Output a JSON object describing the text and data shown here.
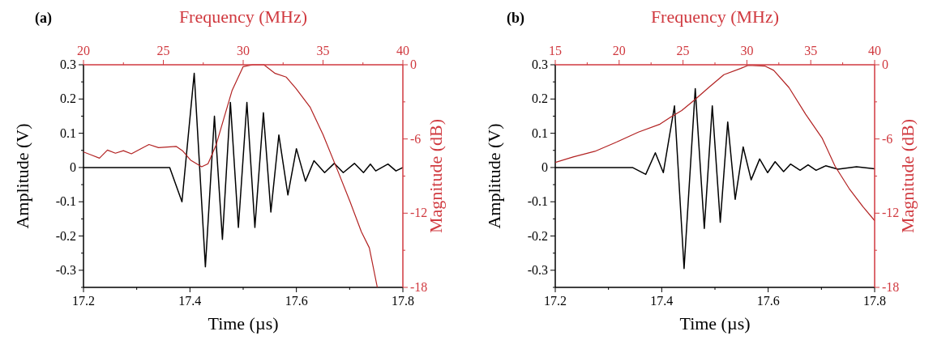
{
  "chart_data": [
    {
      "type": "line",
      "title": "(a)",
      "xlabel": "Time (µs)",
      "ylabel": "Amplitude (V)",
      "xlim": [
        17.2,
        17.8
      ],
      "xticks": [
        17.2,
        {
          "value": 17.3,
          "label": null
        },
        17.4,
        {
          "value": 17.5,
          "label": null
        },
        17.6,
        {
          "value": 17.7,
          "label": null
        },
        17.8
      ],
      "ylim": [
        -0.35,
        0.3
      ],
      "yticks": [
        {
          "value": -0.35,
          "label": null
        },
        -0.3,
        {
          "value": -0.25,
          "label": null
        },
        -0.2,
        {
          "value": -0.15,
          "label": null
        },
        -0.1,
        {
          "value": -0.05,
          "label": null
        },
        0.0,
        {
          "value": 0.05,
          "label": null
        },
        0.1,
        {
          "value": 0.15,
          "label": null
        },
        0.2,
        {
          "value": 0.25,
          "label": null
        },
        0.3
      ],
      "grid": false,
      "series": [
        {
          "color": "#000000",
          "x": [
            17.2,
            17.362,
            17.385,
            17.408,
            17.429,
            17.446,
            17.461,
            17.476,
            17.491,
            17.507,
            17.522,
            17.538,
            17.552,
            17.567,
            17.584,
            17.6,
            17.617,
            17.633,
            17.653,
            17.671,
            17.688,
            17.709,
            17.726,
            17.739,
            17.749,
            17.772,
            17.787,
            17.8
          ],
          "values": [
            0,
            0,
            -0.1,
            0.275,
            -0.29,
            0.15,
            -0.21,
            0.19,
            -0.175,
            0.19,
            -0.175,
            0.16,
            -0.13,
            0.095,
            -0.08,
            0.055,
            -0.04,
            0.02,
            -0.015,
            0.012,
            -0.015,
            0.012,
            -0.015,
            0.01,
            -0.01,
            0.01,
            -0.01,
            0
          ]
        }
      ]
    },
    {
      "type": "line",
      "xlabel": "Frequency (MHz)",
      "ylabel": "Magnitude (dB)",
      "xlim": [
        20,
        40
      ],
      "xticks": [
        20,
        {
          "value": 22.5,
          "label": null
        },
        25,
        {
          "value": 27.5,
          "label": null
        },
        30,
        {
          "value": 32.5,
          "label": null
        },
        35,
        {
          "value": 37.5,
          "label": null
        },
        40
      ],
      "ylim": [
        -18,
        0
      ],
      "yticks": [
        -18,
        {
          "value": -15,
          "label": null
        },
        -12,
        {
          "value": -9,
          "label": null
        },
        -6,
        {
          "value": -3,
          "label": null
        },
        0
      ],
      "grid": false,
      "series": [
        {
          "color": "#b22222",
          "x": [
            20,
            20.5,
            21,
            21.5,
            22,
            22.5,
            23,
            23.5,
            24.1,
            24.7,
            25.8,
            26.2,
            26.7,
            27.4,
            27.8,
            28.3,
            28.8,
            29.3,
            30,
            30.6,
            31.3,
            32,
            32.7,
            33.3,
            34.2,
            35,
            35.9,
            36.7,
            37.4,
            37.9,
            38.4
          ],
          "values": [
            -7.05,
            -7.3,
            -7.55,
            -6.9,
            -7.15,
            -6.95,
            -7.2,
            -6.85,
            -6.45,
            -6.7,
            -6.6,
            -6.95,
            -7.7,
            -8.25,
            -8,
            -6.5,
            -4.3,
            -2.1,
            -0.15,
            0,
            0,
            -0.7,
            -1,
            -1.9,
            -3.45,
            -5.65,
            -8.5,
            -11.1,
            -13.5,
            -14.8,
            -18
          ]
        }
      ]
    },
    {
      "type": "line",
      "title": "(b)",
      "xlabel": "Time (µs)",
      "ylabel": "Amplitude (V)",
      "xlim": [
        17.2,
        17.8
      ],
      "xticks": [
        17.2,
        {
          "value": 17.3,
          "label": null
        },
        17.4,
        {
          "value": 17.5,
          "label": null
        },
        17.6,
        {
          "value": 17.7,
          "label": null
        },
        17.8
      ],
      "ylim": [
        -0.35,
        0.3
      ],
      "yticks": [
        {
          "value": -0.35,
          "label": null
        },
        -0.3,
        {
          "value": -0.25,
          "label": null
        },
        -0.2,
        {
          "value": -0.15,
          "label": null
        },
        -0.1,
        {
          "value": -0.05,
          "label": null
        },
        0.0,
        {
          "value": 0.05,
          "label": null
        },
        0.1,
        {
          "value": 0.15,
          "label": null
        },
        0.2,
        {
          "value": 0.25,
          "label": null
        },
        0.3
      ],
      "grid": false,
      "series": [
        {
          "color": "#000000",
          "x": [
            17.2,
            17.345,
            17.37,
            17.388,
            17.403,
            17.424,
            17.442,
            17.463,
            17.48,
            17.495,
            17.51,
            17.524,
            17.538,
            17.553,
            17.568,
            17.584,
            17.599,
            17.613,
            17.629,
            17.642,
            17.66,
            17.675,
            17.69,
            17.708,
            17.731,
            17.766,
            17.8
          ],
          "values": [
            0,
            0,
            -0.02,
            0.043,
            -0.015,
            0.18,
            -0.295,
            0.23,
            -0.178,
            0.18,
            -0.16,
            0.133,
            -0.093,
            0.06,
            -0.036,
            0.025,
            -0.015,
            0.017,
            -0.012,
            0.01,
            -0.008,
            0.008,
            -0.008,
            0.005,
            -0.005,
            0.002,
            -0.004
          ]
        }
      ]
    },
    {
      "type": "line",
      "xlabel": "Frequency (MHz)",
      "ylabel": "Magnitude (dB)",
      "xlim": [
        15,
        40
      ],
      "xticks": [
        15,
        {
          "value": 17.5,
          "label": null
        },
        20,
        {
          "value": 22.5,
          "label": null
        },
        25,
        {
          "value": 27.5,
          "label": null
        },
        30,
        {
          "value": 32.5,
          "label": null
        },
        35,
        {
          "value": 37.5,
          "label": null
        },
        40
      ],
      "ylim": [
        -18,
        0
      ],
      "yticks": [
        -18,
        {
          "value": -15,
          "label": null
        },
        -12,
        {
          "value": -9,
          "label": null
        },
        -6,
        {
          "value": -3,
          "label": null
        },
        0
      ],
      "grid": false,
      "series": [
        {
          "color": "#b22222",
          "x": [
            15,
            16.4,
            18.1,
            19.8,
            21.5,
            23.2,
            24,
            24.9,
            25.9,
            27,
            28.2,
            29.5,
            30.1,
            31.4,
            32.1,
            33.3,
            34.6,
            35.9,
            36.9,
            38,
            39.1,
            40
          ],
          "values": [
            -7.9,
            -7.45,
            -7,
            -6.25,
            -5.45,
            -4.8,
            -4.25,
            -3.7,
            -2.85,
            -1.85,
            -0.8,
            -0.3,
            -0.05,
            -0.1,
            -0.45,
            -1.85,
            -4,
            -5.95,
            -8.2,
            -10,
            -11.5,
            -12.6
          ]
        }
      ]
    }
  ]
}
